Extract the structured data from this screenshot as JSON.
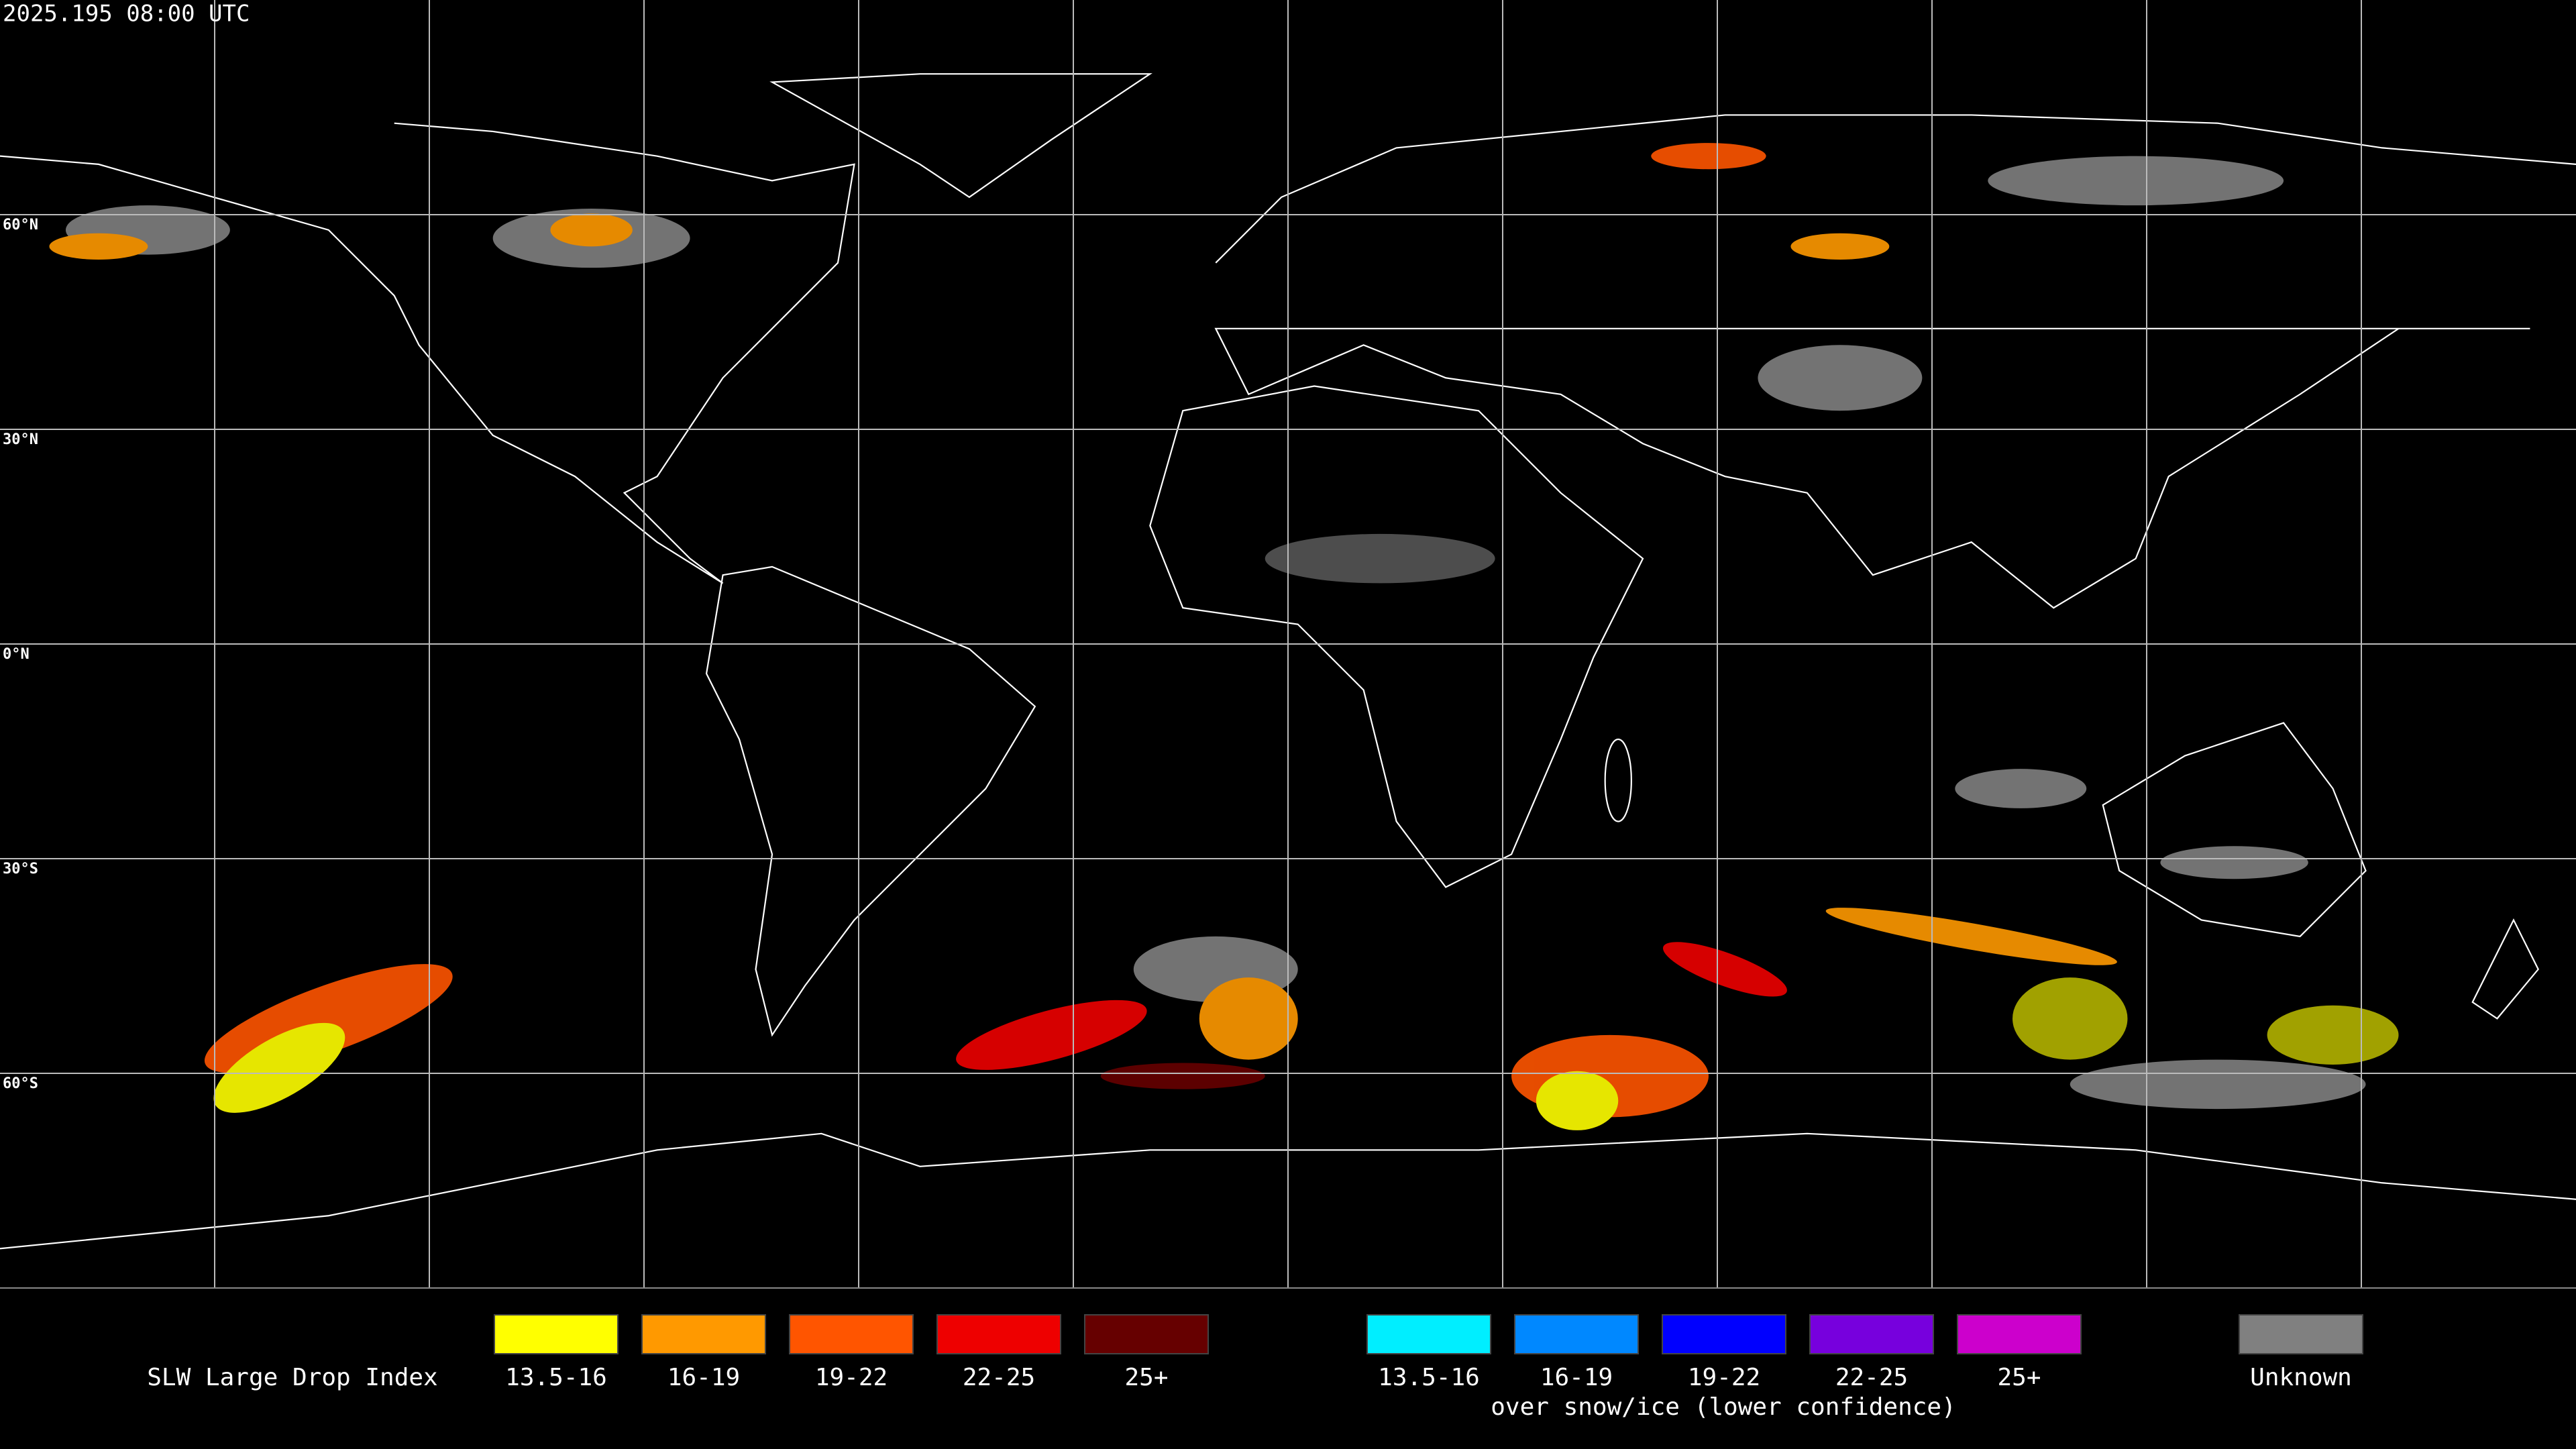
{
  "header": {
    "timestamp": "2025.195 08:00 UTC"
  },
  "map": {
    "latitude_labels": [
      "60°N",
      "30°N",
      "0°N",
      "30°S",
      "60°S"
    ]
  },
  "legend": {
    "title": "SLW Large Drop Index",
    "groups": [
      {
        "items": [
          {
            "label": "13.5-16",
            "color": "#ffff00"
          },
          {
            "label": "16-19",
            "color": "#ff9900"
          },
          {
            "label": "19-22",
            "color": "#ff5500"
          },
          {
            "label": "22-25",
            "color": "#ee0000"
          },
          {
            "label": "25+",
            "color": "#660000"
          }
        ]
      },
      {
        "note": "over snow/ice (lower confidence)",
        "items": [
          {
            "label": "13.5-16",
            "color": "#00eeff"
          },
          {
            "label": "16-19",
            "color": "#0088ff"
          },
          {
            "label": "19-22",
            "color": "#0000ff"
          },
          {
            "label": "22-25",
            "color": "#7700dd"
          },
          {
            "label": "25+",
            "color": "#cc00cc"
          }
        ]
      },
      {
        "items": [
          {
            "label": "Unknown",
            "color": "#808080"
          }
        ]
      }
    ]
  }
}
